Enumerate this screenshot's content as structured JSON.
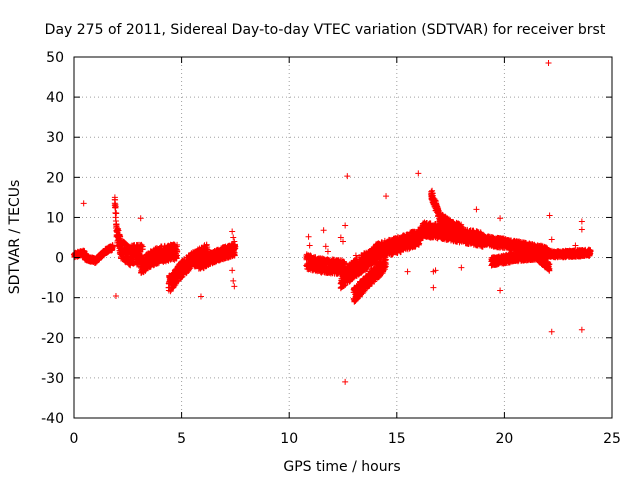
{
  "chart_data": {
    "type": "scatter",
    "title": "Day 275 of 2011, Sidereal Day-to-day VTEC variation (SDTVAR) for receiver brst",
    "xlabel": "GPS time / hours",
    "ylabel": "SDTVAR / TECUs",
    "xlim": [
      0,
      25
    ],
    "ylim": [
      -40,
      50
    ],
    "xticks": [
      0,
      5,
      10,
      15,
      20,
      25
    ],
    "yticks": [
      -40,
      -30,
      -20,
      -10,
      0,
      10,
      20,
      30,
      40,
      50
    ],
    "xtick_labels": [
      "0",
      "5",
      "10",
      "15",
      "20",
      "25"
    ],
    "ytick_labels": [
      "-40",
      "-30",
      "-20",
      "-10",
      "0",
      "10",
      "20",
      "30",
      "40",
      "50"
    ],
    "grid": true,
    "marker": "+",
    "color": "#ff0000",
    "series": [
      {
        "name": "SDTVAR",
        "segments": [
          {
            "t0": 0.0,
            "t1": 0.5,
            "center": [
              [
                0.0,
                0.5
              ],
              [
                0.25,
                1.0
              ],
              [
                0.5,
                1.2
              ]
            ],
            "spread": 0.6
          },
          {
            "t0": 0.5,
            "t1": 1.4,
            "center": [
              [
                0.5,
                0.0
              ],
              [
                1.0,
                -0.8
              ],
              [
                1.4,
                1.2
              ]
            ],
            "spread": 0.6
          },
          {
            "t0": 1.4,
            "t1": 1.8,
            "center": [
              [
                1.4,
                1.5
              ],
              [
                1.8,
                2.5
              ]
            ],
            "spread": 0.6
          },
          {
            "t0": 1.9,
            "t1": 3.2,
            "center": [
              [
                1.9,
                13.0
              ],
              [
                2.0,
                6.0
              ],
              [
                2.2,
                2.0
              ],
              [
                2.6,
                0.5
              ],
              [
                3.2,
                0.8
              ]
            ],
            "spread": 2.5
          },
          {
            "t0": 3.1,
            "t1": 4.8,
            "center": [
              [
                3.1,
                -2.5
              ],
              [
                3.5,
                -0.5
              ],
              [
                4.0,
                0.8
              ],
              [
                4.8,
                1.5
              ]
            ],
            "spread": 2.0
          },
          {
            "t0": 4.4,
            "t1": 6.2,
            "center": [
              [
                4.5,
                -6.5
              ],
              [
                4.9,
                -3.5
              ],
              [
                5.4,
                -1.0
              ],
              [
                6.2,
                1.5
              ]
            ],
            "spread": 2.0
          },
          {
            "t0": 5.8,
            "t1": 7.5,
            "center": [
              [
                5.9,
                -1.5
              ],
              [
                6.5,
                0.2
              ],
              [
                7.0,
                1.2
              ],
              [
                7.5,
                2.0
              ]
            ],
            "spread": 1.5
          },
          {
            "t0": 10.8,
            "t1": 12.6,
            "center": [
              [
                10.8,
                -1.0
              ],
              [
                11.5,
                -2.0
              ],
              [
                12.6,
                -2.5
              ]
            ],
            "spread": 1.8
          },
          {
            "t0": 12.4,
            "t1": 14.0,
            "center": [
              [
                12.4,
                -5.5
              ],
              [
                13.0,
                -3.0
              ],
              [
                13.5,
                -1.0
              ],
              [
                14.0,
                0.5
              ]
            ],
            "spread": 2.2
          },
          {
            "t0": 13.0,
            "t1": 14.5,
            "center": [
              [
                13.0,
                -9.5
              ],
              [
                13.6,
                -6.0
              ],
              [
                14.2,
                -3.0
              ],
              [
                14.5,
                -1.0
              ]
            ],
            "spread": 1.8
          },
          {
            "t0": 14.0,
            "t1": 16.2,
            "center": [
              [
                14.0,
                1.5
              ],
              [
                15.0,
                3.0
              ],
              [
                16.0,
                5.0
              ],
              [
                16.2,
                6.0
              ]
            ],
            "spread": 2.0
          },
          {
            "t0": 16.2,
            "t1": 19.0,
            "center": [
              [
                16.2,
                7.0
              ],
              [
                17.0,
                6.5
              ],
              [
                18.0,
                5.5
              ],
              [
                19.0,
                4.5
              ]
            ],
            "spread": 1.8
          },
          {
            "t0": 16.6,
            "t1": 18.0,
            "center": [
              [
                16.6,
                16.0
              ],
              [
                17.0,
                10.0
              ],
              [
                17.5,
                8.0
              ],
              [
                18.0,
                7.0
              ]
            ],
            "spread": 1.2
          },
          {
            "t0": 18.8,
            "t1": 22.0,
            "center": [
              [
                18.8,
                4.5
              ],
              [
                20.0,
                3.5
              ],
              [
                21.0,
                2.5
              ],
              [
                22.0,
                1.5
              ]
            ],
            "spread": 1.2
          },
          {
            "t0": 21.8,
            "t1": 24.0,
            "center": [
              [
                21.8,
                1.0
              ],
              [
                22.5,
                0.8
              ],
              [
                23.3,
                1.0
              ],
              [
                24.0,
                1.2
              ]
            ],
            "spread": 0.8
          },
          {
            "t0": 19.4,
            "t1": 22.1,
            "center": [
              [
                19.4,
                -1.0
              ],
              [
                20.5,
                0.0
              ],
              [
                21.5,
                0.5
              ],
              [
                22.1,
                -2.5
              ]
            ],
            "spread": 1.0
          }
        ],
        "points": [
          [
            0.45,
            13.5
          ],
          [
            1.9,
            15.0
          ],
          [
            1.95,
            -9.6
          ],
          [
            3.1,
            9.8
          ],
          [
            5.9,
            -9.7
          ],
          [
            7.35,
            6.5
          ],
          [
            7.4,
            5.0
          ],
          [
            7.45,
            4.0
          ],
          [
            7.4,
            2.5
          ],
          [
            7.35,
            -3.2
          ],
          [
            7.4,
            -5.8
          ],
          [
            7.45,
            -7.2
          ],
          [
            6.9,
            2.5
          ],
          [
            10.9,
            5.2
          ],
          [
            10.95,
            3.0
          ],
          [
            11.5,
            -0.5
          ],
          [
            11.6,
            6.8
          ],
          [
            11.7,
            2.8
          ],
          [
            11.8,
            1.5
          ],
          [
            12.4,
            -7.5
          ],
          [
            12.4,
            5.0
          ],
          [
            12.5,
            4.0
          ],
          [
            12.6,
            8.0
          ],
          [
            12.7,
            20.3
          ],
          [
            12.6,
            -31.0
          ],
          [
            13.0,
            -5.0
          ],
          [
            13.1,
            0.5
          ],
          [
            14.5,
            15.3
          ],
          [
            15.0,
            2.0
          ],
          [
            15.5,
            -3.5
          ],
          [
            16.0,
            21.0
          ],
          [
            16.7,
            -7.5
          ],
          [
            16.8,
            -3.2
          ],
          [
            16.7,
            -3.5
          ],
          [
            17.0,
            8.5
          ],
          [
            18.0,
            -2.5
          ],
          [
            18.7,
            12.0
          ],
          [
            19.8,
            9.8
          ],
          [
            19.8,
            -8.2
          ],
          [
            22.05,
            48.5
          ],
          [
            22.1,
            10.5
          ],
          [
            22.2,
            4.5
          ],
          [
            22.2,
            -18.5
          ],
          [
            23.6,
            -18.0
          ],
          [
            23.6,
            9.0
          ],
          [
            23.6,
            7.0
          ],
          [
            23.3,
            3.0
          ]
        ]
      }
    ]
  }
}
